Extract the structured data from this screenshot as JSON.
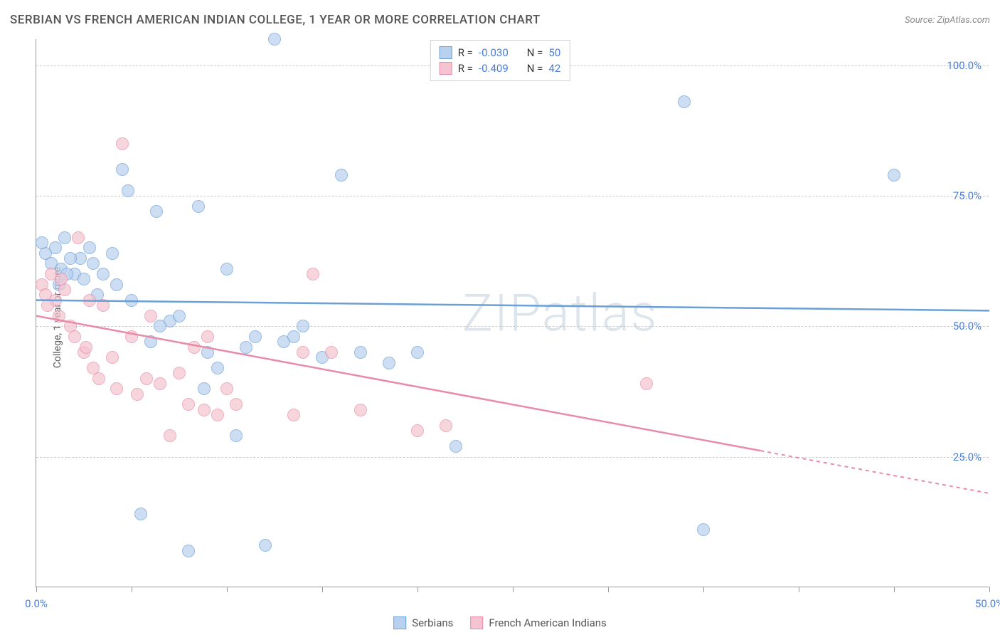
{
  "title": "SERBIAN VS FRENCH AMERICAN INDIAN COLLEGE, 1 YEAR OR MORE CORRELATION CHART",
  "source": "Source: ZipAtlas.com",
  "y_axis_label": "College, 1 year or more",
  "watermark": "ZIPatlas",
  "chart": {
    "type": "scatter",
    "background_color": "#ffffff",
    "grid_color": "#cccccc",
    "axis_color": "#999999",
    "xlim": [
      0,
      50
    ],
    "ylim": [
      0,
      105
    ],
    "x_ticks": [
      0,
      5,
      10,
      15,
      20,
      25,
      30,
      35,
      40,
      45,
      50
    ],
    "x_tick_labels": {
      "0": "0.0%",
      "50": "50.0%"
    },
    "y_ticks": [
      25,
      50,
      75,
      100
    ],
    "y_tick_labels": {
      "25": "25.0%",
      "50": "50.0%",
      "75": "75.0%",
      "100": "100.0%"
    },
    "x_label_color": "#4a7fd8",
    "y_label_color": "#4a7fd8",
    "point_radius": 9,
    "point_border_width": 1.5,
    "series": [
      {
        "name": "Serbians",
        "fill": "#b8d1ef",
        "stroke": "#6a9fd8",
        "fill_opacity": 0.7,
        "R": "-0.030",
        "N": "50",
        "trend": {
          "x1": 0,
          "y1": 55,
          "x2": 50,
          "y2": 53,
          "dashed_from": null
        },
        "points": [
          [
            0.5,
            64
          ],
          [
            0.8,
            62
          ],
          [
            1.0,
            65
          ],
          [
            1.2,
            58
          ],
          [
            1.3,
            61
          ],
          [
            1.5,
            67
          ],
          [
            2.0,
            60
          ],
          [
            2.3,
            63
          ],
          [
            2.8,
            65
          ],
          [
            3.0,
            62
          ],
          [
            3.5,
            60
          ],
          [
            4.0,
            64
          ],
          [
            4.5,
            80
          ],
          [
            4.8,
            76
          ],
          [
            5.5,
            14
          ],
          [
            6.0,
            47
          ],
          [
            6.3,
            72
          ],
          [
            7.0,
            51
          ],
          [
            7.5,
            52
          ],
          [
            8.0,
            7
          ],
          [
            8.5,
            73
          ],
          [
            9.0,
            45
          ],
          [
            9.5,
            42
          ],
          [
            10.0,
            61
          ],
          [
            10.5,
            29
          ],
          [
            11.0,
            46
          ],
          [
            11.5,
            48
          ],
          [
            12.0,
            8
          ],
          [
            12.5,
            105
          ],
          [
            13.0,
            47
          ],
          [
            14.0,
            50
          ],
          [
            15.0,
            44
          ],
          [
            16.0,
            79
          ],
          [
            17.0,
            45
          ],
          [
            18.5,
            43
          ],
          [
            20.0,
            45
          ],
          [
            22.0,
            27
          ],
          [
            34.0,
            93
          ],
          [
            35.0,
            11
          ],
          [
            45.0,
            79
          ],
          [
            4.2,
            58
          ],
          [
            5.0,
            55
          ],
          [
            6.5,
            50
          ],
          [
            3.2,
            56
          ],
          [
            2.5,
            59
          ],
          [
            1.8,
            63
          ],
          [
            0.3,
            66
          ],
          [
            1.6,
            60
          ],
          [
            8.8,
            38
          ],
          [
            13.5,
            48
          ]
        ]
      },
      {
        "name": "French American Indians",
        "fill": "#f5c4d0",
        "stroke": "#e88ba8",
        "fill_opacity": 0.7,
        "R": "-0.409",
        "N": "42",
        "trend": {
          "x1": 0,
          "y1": 52,
          "x2": 50,
          "y2": 18,
          "dashed_from": 38
        },
        "points": [
          [
            0.3,
            58
          ],
          [
            0.5,
            56
          ],
          [
            0.8,
            60
          ],
          [
            1.0,
            55
          ],
          [
            1.2,
            52
          ],
          [
            1.5,
            57
          ],
          [
            1.8,
            50
          ],
          [
            2.0,
            48
          ],
          [
            2.2,
            67
          ],
          [
            2.5,
            45
          ],
          [
            2.8,
            55
          ],
          [
            3.0,
            42
          ],
          [
            3.3,
            40
          ],
          [
            3.5,
            54
          ],
          [
            4.0,
            44
          ],
          [
            4.2,
            38
          ],
          [
            4.5,
            85
          ],
          [
            5.0,
            48
          ],
          [
            5.3,
            37
          ],
          [
            5.8,
            40
          ],
          [
            6.0,
            52
          ],
          [
            6.5,
            39
          ],
          [
            7.0,
            29
          ],
          [
            7.5,
            41
          ],
          [
            8.0,
            35
          ],
          [
            8.3,
            46
          ],
          [
            8.8,
            34
          ],
          [
            9.0,
            48
          ],
          [
            9.5,
            33
          ],
          [
            10.0,
            38
          ],
          [
            10.5,
            35
          ],
          [
            13.5,
            33
          ],
          [
            14.0,
            45
          ],
          [
            14.5,
            60
          ],
          [
            15.5,
            45
          ],
          [
            17.0,
            34
          ],
          [
            20.0,
            30
          ],
          [
            21.5,
            31
          ],
          [
            32.0,
            39
          ],
          [
            1.3,
            59
          ],
          [
            0.6,
            54
          ],
          [
            2.6,
            46
          ]
        ]
      }
    ]
  },
  "legend_top_labels": {
    "R": "R =",
    "N": "N ="
  },
  "legend_bottom": [
    "Serbians",
    "French American Indians"
  ]
}
